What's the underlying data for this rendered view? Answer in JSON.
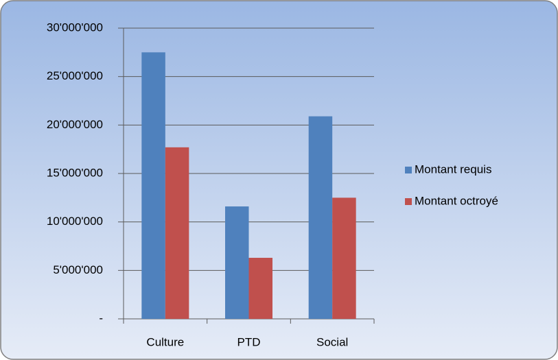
{
  "chart_data": {
    "type": "bar",
    "categories": [
      "Culture",
      "PTD",
      "Social"
    ],
    "series": [
      {
        "name": "Montant requis",
        "color": "#4f81bd",
        "values": [
          27500000,
          11600000,
          20900000
        ]
      },
      {
        "name": "Montant octroyé",
        "color": "#c0504d",
        "values": [
          17700000,
          6300000,
          12500000
        ]
      }
    ],
    "ylim": [
      0,
      30000000
    ],
    "yticks": [
      {
        "value": 0,
        "label": "-"
      },
      {
        "value": 5000000,
        "label": "5'000'000"
      },
      {
        "value": 10000000,
        "label": "10'000'000"
      },
      {
        "value": 15000000,
        "label": "15'000'000"
      },
      {
        "value": 20000000,
        "label": "20'000'000"
      },
      {
        "value": 25000000,
        "label": "25'000'000"
      },
      {
        "value": 30000000,
        "label": "30'000'000"
      }
    ],
    "grid": true,
    "legend": "right"
  }
}
